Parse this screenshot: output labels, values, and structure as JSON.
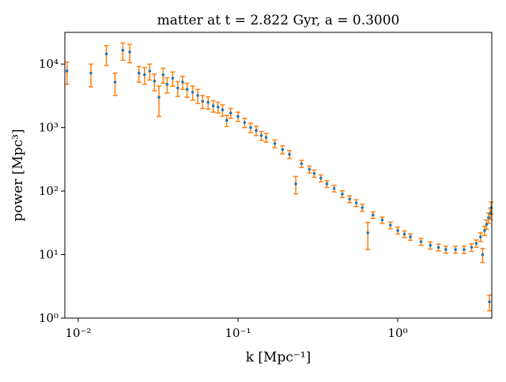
{
  "chart_data": {
    "type": "errorbar",
    "title": "matter at t = 2.822 Gyr, a = 0.3000",
    "xlabel": "k [Mpc⁻¹]",
    "ylabel": "power [Mpc³]",
    "xscale": "log",
    "yscale": "log",
    "xlim": [
      0.00824,
      3.88
    ],
    "ylim": [
      1,
      31600
    ],
    "xticks": [
      {
        "value": 0.01,
        "label": "10⁻²"
      },
      {
        "value": 0.1,
        "label": "10⁻¹"
      },
      {
        "value": 1,
        "label": "10⁰"
      }
    ],
    "yticks": [
      {
        "value": 1,
        "label": "10⁰"
      },
      {
        "value": 10,
        "label": "10¹"
      },
      {
        "value": 100,
        "label": "10²"
      },
      {
        "value": 1000,
        "label": "10³"
      },
      {
        "value": 10000,
        "label": "10⁴"
      }
    ],
    "color": "#1f77b4",
    "error_color": "#ff7f0e",
    "x": [
      0.0085,
      0.012,
      0.015,
      0.017,
      0.019,
      0.021,
      0.024,
      0.026,
      0.028,
      0.03,
      0.032,
      0.034,
      0.036,
      0.039,
      0.042,
      0.045,
      0.048,
      0.052,
      0.056,
      0.06,
      0.065,
      0.07,
      0.075,
      0.08,
      0.085,
      0.09,
      0.1,
      0.11,
      0.12,
      0.13,
      0.14,
      0.15,
      0.17,
      0.19,
      0.21,
      0.23,
      0.25,
      0.28,
      0.3,
      0.33,
      0.36,
      0.4,
      0.45,
      0.5,
      0.55,
      0.6,
      0.65,
      0.7,
      0.8,
      0.9,
      1.0,
      1.1,
      1.2,
      1.4,
      1.6,
      1.8,
      2.0,
      2.3,
      2.6,
      2.9,
      3.1,
      3.3,
      3.4,
      3.5,
      3.6,
      3.7,
      3.75,
      3.8,
      3.85
    ],
    "values": [
      7800,
      7200,
      14500,
      5200,
      16500,
      15500,
      7200,
      6800,
      7800,
      5400,
      3000,
      6800,
      4800,
      6000,
      4200,
      5200,
      4000,
      3600,
      3200,
      2600,
      2500,
      2200,
      2100,
      1900,
      1300,
      1700,
      1500,
      1200,
      1000,
      900,
      750,
      700,
      560,
      450,
      380,
      130,
      270,
      220,
      190,
      160,
      130,
      110,
      90,
      75,
      65,
      55,
      22,
      42,
      35,
      29,
      24,
      21,
      19,
      16,
      14,
      13,
      12,
      12,
      12,
      13,
      15,
      19,
      10,
      24,
      30,
      38,
      1.8,
      45,
      55
    ],
    "errors": [
      3000,
      2800,
      5000,
      2000,
      5000,
      5000,
      2000,
      2000,
      2200,
      1600,
      1500,
      1800,
      1300,
      1500,
      1100,
      1200,
      1000,
      900,
      800,
      600,
      550,
      450,
      400,
      380,
      260,
      300,
      250,
      200,
      170,
      150,
      120,
      110,
      80,
      65,
      55,
      40,
      35,
      28,
      25,
      20,
      16,
      13,
      11,
      9,
      8,
      7,
      10,
      5,
      4,
      3.5,
      3,
      2.5,
      2.2,
      2,
      1.8,
      1.6,
      1.5,
      1.5,
      1.6,
      1.8,
      2,
      3,
      2.5,
      4,
      5,
      7,
      0.5,
      9,
      12
    ]
  }
}
